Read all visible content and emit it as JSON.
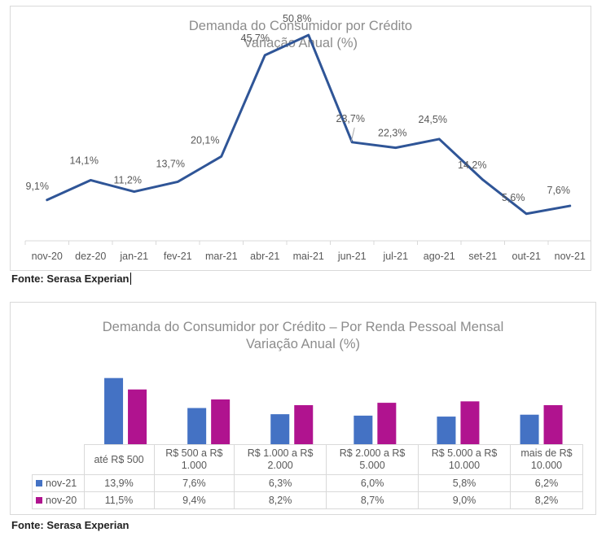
{
  "chart_data": [
    {
      "type": "line",
      "title": "Demanda do Consumidor por Crédito",
      "subtitle": "Variação Anual (%)",
      "categories": [
        "nov-20",
        "dez-20",
        "jan-21",
        "fev-21",
        "mar-21",
        "abr-21",
        "mai-21",
        "jun-21",
        "jul-21",
        "ago-21",
        "set-21",
        "out-21",
        "nov-21"
      ],
      "series": [
        {
          "color": "#2f5597",
          "values": [
            9.1,
            14.1,
            11.2,
            13.7,
            20.1,
            45.7,
            50.8,
            23.7,
            22.3,
            24.5,
            14.2,
            5.6,
            7.6
          ]
        }
      ],
      "data_labels": [
        "9,1%",
        "14,1%",
        "11,2%",
        "13,7%",
        "20,1%",
        "45,7%",
        "50,8%",
        "23,7%",
        "22,3%",
        "24,5%",
        "14,2%",
        "5,6%",
        "7,6%"
      ],
      "grid": false
    },
    {
      "type": "bar",
      "title": "Demanda do Consumidor por Crédito – Por Renda Pessoal Mensal",
      "subtitle": "Variação Anual (%)",
      "categories": [
        [
          "até R$ 500"
        ],
        [
          "R$ 500 a R$",
          "1.000"
        ],
        [
          "R$ 1.000 a R$",
          "2.000"
        ],
        [
          "R$ 2.000 a R$",
          "5.000"
        ],
        [
          "R$ 5.000 a R$",
          "10.000"
        ],
        [
          "mais de R$",
          "10.000"
        ]
      ],
      "series": [
        {
          "name": "nov-21",
          "color": "#4472c4",
          "values": [
            13.9,
            7.6,
            6.3,
            6.0,
            5.8,
            6.2
          ],
          "labels": [
            "13,9%",
            "7,6%",
            "6,3%",
            "6,0%",
            "5,8%",
            "6,2%"
          ]
        },
        {
          "name": "nov-20",
          "color": "#b0138f",
          "values": [
            11.5,
            9.4,
            8.2,
            8.7,
            9.0,
            8.2
          ],
          "labels": [
            "11,5%",
            "9,4%",
            "8,2%",
            "8,7%",
            "9,0%",
            "8,2%"
          ]
        }
      ],
      "data_table": true
    }
  ],
  "sources": [
    "Fonte: Serasa Experian",
    "Fonte: Serasa Experian"
  ]
}
